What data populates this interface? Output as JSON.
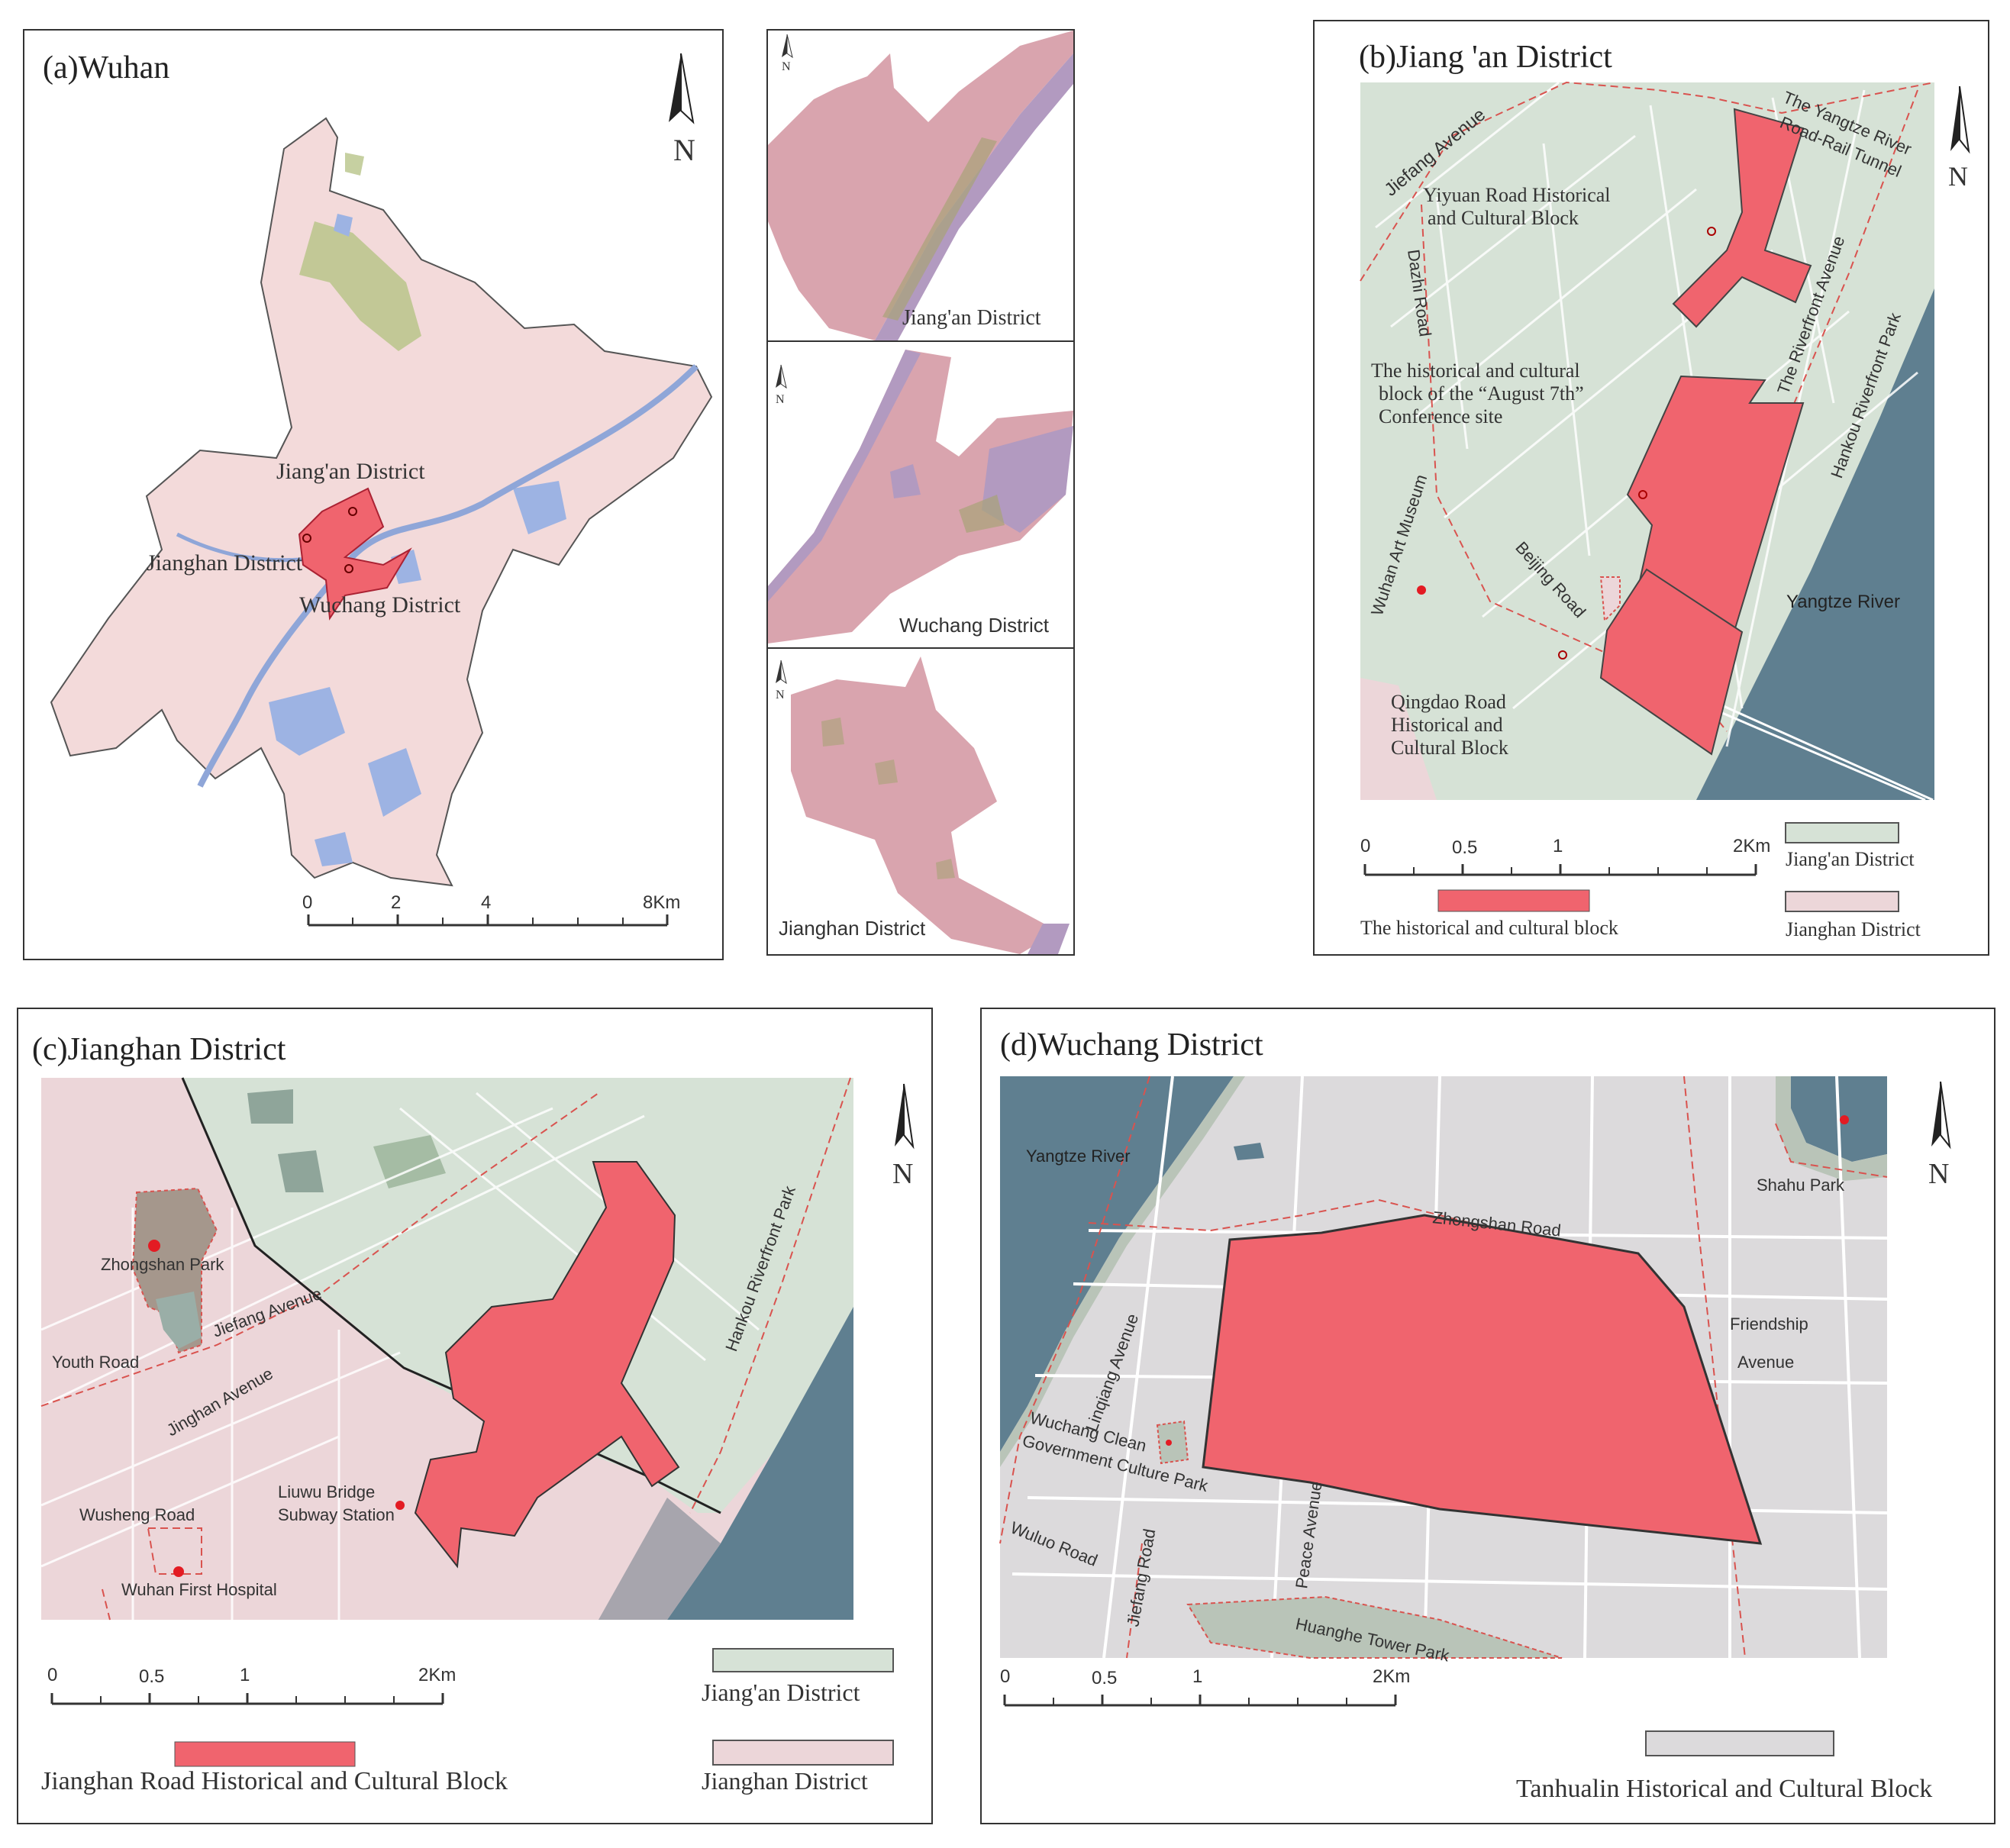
{
  "colors": {
    "block_red": "#f0646e",
    "jiangan_green": "#d6e2d6",
    "jianghan_pink": "#ecd6d9",
    "wuchang_grey": "#dcdadc",
    "water_blue": "#5f7f90",
    "lake_blue": "#9db3e3",
    "forest_green": "#b8c48a",
    "city_pink": "#f3dada",
    "inset_mauve": "#d9a4ae",
    "inset_purple": "#b29ac0"
  },
  "panel_a": {
    "title": "(a)Wuhan",
    "north": "N",
    "labels": {
      "jiangan": "Jiang'an District",
      "jianghan": "Jianghan District",
      "wuchang": "Wuchang District"
    },
    "scale": [
      "0",
      "2",
      "4",
      "8Km"
    ]
  },
  "insets": [
    {
      "label": "Jiang'an District",
      "north": "N"
    },
    {
      "label": "Wuchang District",
      "north": "N"
    },
    {
      "label": "Jianghan District",
      "north": "N"
    }
  ],
  "panel_b": {
    "title": "(b)Jiang 'an District",
    "north": "N",
    "labels": {
      "jiefang": "Jiefang Avenue",
      "tunnel_1": "The Yangtze River",
      "tunnel_2": "Road-Rail Tunnel",
      "yiyuan_1": "Yiyuan Road Historical",
      "yiyuan_2": "and Cultural Block",
      "dazhi": "Dazhi Road",
      "riverfront_ave": "The Riverfront Avenue",
      "august_1": "The historical and cultural",
      "august_2": "block of the “August 7th”",
      "august_3": "Conference site",
      "hankou_park": "Hankou Riverfront Park",
      "art_museum": "Wuhan Art Museum",
      "beijing": "Beijing Road",
      "yangtze": "Yangtze River",
      "qingdao_1": "Qingdao Road",
      "qingdao_2": "Historical and",
      "qingdao_3": "Cultural Block"
    },
    "scale": [
      "0",
      "0.5",
      "1",
      "2Km"
    ],
    "legend": {
      "block": "The historical and cultural block",
      "jiangan": "Jiang'an District",
      "jianghan": "Jianghan District"
    }
  },
  "panel_c": {
    "title": "(c)Jianghan District",
    "north": "N",
    "labels": {
      "zhongshan_park": "Zhongshan Park",
      "jiefang": "Jiefang Avenue",
      "youth": "Youth Road",
      "jinghan": "Jinghan Avenue",
      "hankou_park": "Hankou Riverfront Park",
      "liuwu_1": "Liuwu Bridge",
      "liuwu_2": "Subway Station",
      "wusheng": "Wusheng Road",
      "hospital": "Wuhan First Hospital"
    },
    "scale": [
      "0",
      "0.5",
      "1",
      "2Km"
    ],
    "legend": {
      "jiangan": "Jiang'an District",
      "block": "Jianghan Road Historical and Cultural Block",
      "jianghan": "Jianghan District"
    }
  },
  "panel_d": {
    "title": "(d)Wuchang District",
    "north": "N",
    "labels": {
      "yangtze": "Yangtze River",
      "shahu": "Shahu Park",
      "zhongshan": "Zhongshan Road",
      "linqiang": "Linqiang Avenue",
      "friendship_1": "Friendship",
      "friendship_2": "Avenue",
      "clean_1": "Wuchang Clean",
      "clean_2": "Government Culture Park",
      "peace": "Peace Avenue",
      "wuluo": "Wuluo Road",
      "jiefang": "Jiefang Road",
      "huanghe": "Huanghe Tower Park"
    },
    "scale": [
      "0",
      "0.5",
      "1",
      "2Km"
    ],
    "legend": {
      "block": "Tanhualin Historical and Cultural Block"
    }
  }
}
